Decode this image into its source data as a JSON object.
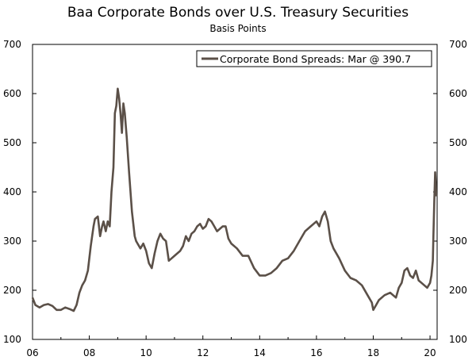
{
  "chart_data": {
    "type": "line",
    "title": "Baa Corporate Bonds over U.S. Treasury Securities",
    "subtitle": "Basis Points",
    "xlabel": "",
    "ylabel": "",
    "xlim": [
      2006.0,
      2020.25
    ],
    "ylim": [
      100,
      700
    ],
    "x_ticks": [
      2006,
      2008,
      2010,
      2012,
      2014,
      2016,
      2018,
      2020
    ],
    "x_tick_labels": [
      "06",
      "08",
      "10",
      "12",
      "14",
      "16",
      "18",
      "20"
    ],
    "y_ticks": [
      100,
      200,
      300,
      400,
      500,
      600,
      700
    ],
    "y_tick_labels": [
      "100",
      "200",
      "300",
      "400",
      "500",
      "600",
      "700"
    ],
    "grid": false,
    "legend_position": "top-right",
    "series_color": "#5b5048",
    "series": [
      {
        "name": "Corporate Bond Spreads: Mar @ 390.7",
        "x": [
          2006.0,
          2006.1,
          2006.25,
          2006.4,
          2006.55,
          2006.7,
          2006.85,
          2007.0,
          2007.15,
          2007.3,
          2007.45,
          2007.55,
          2007.65,
          2007.75,
          2007.85,
          2007.95,
          2008.05,
          2008.15,
          2008.2,
          2008.3,
          2008.38,
          2008.45,
          2008.5,
          2008.58,
          2008.65,
          2008.72,
          2008.78,
          2008.85,
          2008.9,
          2008.95,
          2009.0,
          2009.05,
          2009.1,
          2009.15,
          2009.2,
          2009.25,
          2009.32,
          2009.4,
          2009.5,
          2009.6,
          2009.65,
          2009.7,
          2009.8,
          2009.9,
          2010.0,
          2010.1,
          2010.2,
          2010.3,
          2010.4,
          2010.5,
          2010.6,
          2010.7,
          2010.8,
          2010.9,
          2011.0,
          2011.1,
          2011.2,
          2011.3,
          2011.4,
          2011.5,
          2011.6,
          2011.7,
          2011.8,
          2011.9,
          2012.0,
          2012.1,
          2012.2,
          2012.3,
          2012.4,
          2012.5,
          2012.6,
          2012.7,
          2012.8,
          2012.9,
          2013.0,
          2013.2,
          2013.4,
          2013.6,
          2013.8,
          2014.0,
          2014.2,
          2014.4,
          2014.6,
          2014.8,
          2015.0,
          2015.2,
          2015.4,
          2015.6,
          2015.8,
          2016.0,
          2016.1,
          2016.2,
          2016.3,
          2016.4,
          2016.5,
          2016.6,
          2016.8,
          2017.0,
          2017.2,
          2017.4,
          2017.6,
          2017.8,
          2017.95,
          2018.0,
          2018.1,
          2018.2,
          2018.4,
          2018.6,
          2018.8,
          2018.9,
          2019.0,
          2019.1,
          2019.2,
          2019.3,
          2019.4,
          2019.5,
          2019.6,
          2019.7,
          2019.8,
          2019.9,
          2020.0,
          2020.05,
          2020.1,
          2020.12,
          2020.15,
          2020.18,
          2020.2,
          2020.22
        ],
        "y": [
          185,
          170,
          165,
          170,
          172,
          168,
          160,
          160,
          165,
          162,
          158,
          170,
          195,
          210,
          220,
          240,
          290,
          330,
          345,
          350,
          310,
          330,
          340,
          320,
          340,
          330,
          400,
          450,
          560,
          575,
          610,
          590,
          560,
          520,
          580,
          560,
          510,
          440,
          360,
          310,
          300,
          295,
          285,
          295,
          280,
          255,
          245,
          275,
          300,
          315,
          305,
          300,
          260,
          265,
          270,
          275,
          280,
          290,
          310,
          300,
          315,
          320,
          330,
          335,
          325,
          330,
          345,
          340,
          330,
          320,
          325,
          330,
          330,
          305,
          295,
          285,
          270,
          270,
          245,
          230,
          230,
          235,
          245,
          260,
          265,
          280,
          300,
          320,
          330,
          340,
          330,
          350,
          360,
          340,
          300,
          285,
          265,
          240,
          225,
          220,
          210,
          190,
          175,
          160,
          170,
          180,
          190,
          195,
          185,
          205,
          215,
          240,
          245,
          230,
          225,
          240,
          220,
          215,
          210,
          205,
          215,
          230,
          260,
          310,
          380,
          440,
          420,
          391
        ]
      }
    ]
  }
}
